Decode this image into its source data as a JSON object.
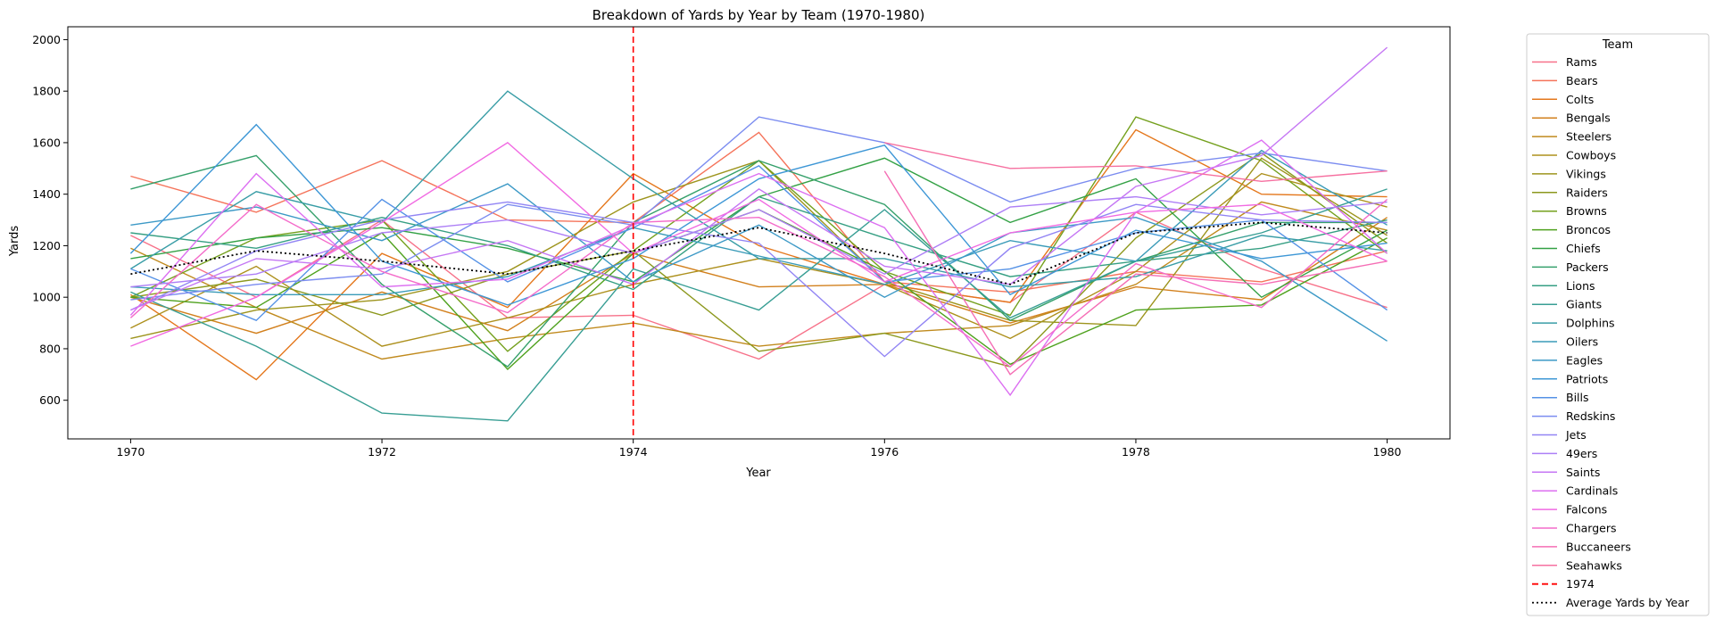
{
  "chart_data": {
    "type": "line",
    "title": "Breakdown of Yards by Year by Team (1970-1980)",
    "xlabel": "Year",
    "ylabel": "Yards",
    "xlim": [
      1969.5,
      1980.5
    ],
    "ylim": [
      450,
      2050
    ],
    "x": [
      1970,
      1971,
      1972,
      1973,
      1974,
      1975,
      1976,
      1977,
      1978,
      1979,
      1980
    ],
    "xticks": [
      1970,
      1972,
      1974,
      1976,
      1978,
      1980
    ],
    "xtick_labels": [
      "1970",
      "1972",
      "1974",
      "1976",
      "1978",
      "1980"
    ],
    "yticks": [
      600,
      800,
      1000,
      1200,
      1400,
      1600,
      1800,
      2000
    ],
    "ytick_labels": [
      "600",
      "800",
      "1000",
      "1200",
      "1400",
      "1600",
      "1800",
      "2000"
    ],
    "grid": false,
    "legend": {
      "title": "Team",
      "placement": "outside-right"
    },
    "series": [
      {
        "name": "Rams",
        "color": "#f77189",
        "values": [
          1240,
          1000,
          1300,
          920,
          930,
          760,
          1050,
          980,
          1330,
          1110,
          960
        ]
      },
      {
        "name": "Bears",
        "color": "#f5735a",
        "values": [
          1470,
          1330,
          1530,
          1300,
          1290,
          1640,
          1060,
          1020,
          1100,
          1060,
          1180
        ]
      },
      {
        "name": "Colts",
        "color": "#e4771c",
        "values": [
          1010,
          680,
          1170,
          960,
          1480,
          1200,
          1050,
          980,
          1650,
          1400,
          1390
        ]
      },
      {
        "name": "Bengals",
        "color": "#d2801d",
        "values": [
          1000,
          860,
          1020,
          870,
          1170,
          1040,
          1050,
          900,
          1040,
          990,
          1310
        ]
      },
      {
        "name": "Steelers",
        "color": "#c08a1d",
        "values": [
          1190,
          960,
          760,
          840,
          900,
          810,
          860,
          890,
          1050,
          1370,
          1260
        ]
      },
      {
        "name": "Cowboys",
        "color": "#ad901d",
        "values": [
          880,
          1120,
          810,
          920,
          1050,
          1150,
          1050,
          840,
          1100,
          1480,
          1350
        ]
      },
      {
        "name": "Vikings",
        "color": "#9d941d",
        "values": [
          840,
          950,
          990,
          1100,
          1370,
          1530,
          1060,
          910,
          890,
          1540,
          1240
        ]
      },
      {
        "name": "Raiders",
        "color": "#8c981d",
        "values": [
          1000,
          1070,
          930,
          1090,
          1180,
          790,
          860,
          730,
          1230,
          1560,
          1210
        ]
      },
      {
        "name": "Browns",
        "color": "#74a01d",
        "values": [
          1000,
          1230,
          1300,
          790,
          1180,
          1530,
          1100,
          930,
          1700,
          1530,
          1170
        ]
      },
      {
        "name": "Broncos",
        "color": "#4ea11d",
        "values": [
          1000,
          960,
          1250,
          720,
          1170,
          1340,
          1100,
          740,
          950,
          970,
          1230
        ]
      },
      {
        "name": "Chiefs",
        "color": "#33a145",
        "values": [
          1150,
          1230,
          1270,
          1190,
          1060,
          1390,
          1540,
          1290,
          1460,
          1000,
          1260
        ]
      },
      {
        "name": "Packers",
        "color": "#35a06b",
        "values": [
          1420,
          1550,
          1050,
          730,
          1290,
          1530,
          1360,
          910,
          1140,
          1290,
          1290
        ]
      },
      {
        "name": "Lions",
        "color": "#369f83",
        "values": [
          1250,
          1190,
          1310,
          1200,
          1030,
          1390,
          1230,
          1080,
          1140,
          1190,
          1300
        ]
      },
      {
        "name": "Giants",
        "color": "#389e94",
        "values": [
          1020,
          810,
          550,
          520,
          1110,
          950,
          1340,
          920,
          1140,
          1250,
          1420
        ]
      },
      {
        "name": "Dolphins",
        "color": "#399da6",
        "values": [
          1110,
          1410,
          1290,
          1800,
          1460,
          1150,
          1150,
          1040,
          1080,
          1240,
          1180
        ]
      },
      {
        "name": "Oilers",
        "color": "#3a9bb8",
        "values": [
          1040,
          1010,
          1010,
          1080,
          1270,
          1160,
          1050,
          1220,
          1140,
          1570,
          1280
        ]
      },
      {
        "name": "Eagles",
        "color": "#3c99c6",
        "values": [
          1280,
          1350,
          1220,
          1440,
          1060,
          1280,
          1000,
          1250,
          1310,
          1140,
          830
        ]
      },
      {
        "name": "Patriots",
        "color": "#3e97d6",
        "values": [
          1170,
          1670,
          1140,
          970,
          1150,
          1460,
          1590,
          1010,
          1260,
          1150,
          1210
        ]
      },
      {
        "name": "Bills",
        "color": "#5592e6",
        "values": [
          1110,
          910,
          1380,
          1060,
          1270,
          1510,
          1060,
          1110,
          1250,
          1300,
          950
        ]
      },
      {
        "name": "Redskins",
        "color": "#7b8cf0",
        "values": [
          990,
          1050,
          1090,
          1360,
          1280,
          1700,
          1600,
          1370,
          1500,
          1560,
          1490
        ]
      },
      {
        "name": "Jets",
        "color": "#9285f4",
        "values": [
          950,
          1180,
          1300,
          1370,
          1290,
          1210,
          770,
          1190,
          1360,
          1300,
          1290
        ]
      },
      {
        "name": "49ers",
        "color": "#ad7ff6",
        "values": [
          1040,
          1090,
          1250,
          1300,
          1170,
          1340,
          1090,
          1350,
          1390,
          1320,
          1370
        ]
      },
      {
        "name": "Saints",
        "color": "#c577f4",
        "values": [
          950,
          1150,
          1110,
          1220,
          1050,
          1420,
          1120,
          1050,
          1430,
          1550,
          1970
        ]
      },
      {
        "name": "Cardinals",
        "color": "#dc6ff1",
        "values": [
          930,
          1480,
          1040,
          1070,
          1280,
          1480,
          1270,
          620,
          1330,
          1610,
          1170
        ]
      },
      {
        "name": "Falcons",
        "color": "#f16ae2",
        "values": [
          810,
          1000,
          1290,
          1600,
          1170,
          1380,
          1060,
          1250,
          1330,
          1360,
          1140
        ]
      },
      {
        "name": "Chargers",
        "color": "#f46cca",
        "values": [
          920,
          1360,
          1100,
          940,
          1290,
          1310,
          1080,
          730,
          1130,
          960,
          1380
        ]
      },
      {
        "name": "Buccaneers",
        "color": "#f56eb5",
        "values": [
          null,
          null,
          null,
          null,
          null,
          null,
          1490,
          700,
          1090,
          1050,
          1140
        ]
      },
      {
        "name": "Seahawks",
        "color": "#f670a0",
        "values": [
          null,
          null,
          null,
          null,
          null,
          null,
          1600,
          1500,
          1510,
          1450,
          1490
        ]
      },
      {
        "name": "Average Yards by Year",
        "color": "#000000",
        "dash": "dotted",
        "values": [
          1090,
          1180,
          1140,
          1090,
          1180,
          1270,
          1170,
          1050,
          1250,
          1290,
          1250
        ]
      }
    ],
    "annotations": [
      {
        "type": "vline",
        "x": 1974,
        "label": "1974",
        "color": "#ff0000",
        "dash": "dashed"
      }
    ]
  }
}
